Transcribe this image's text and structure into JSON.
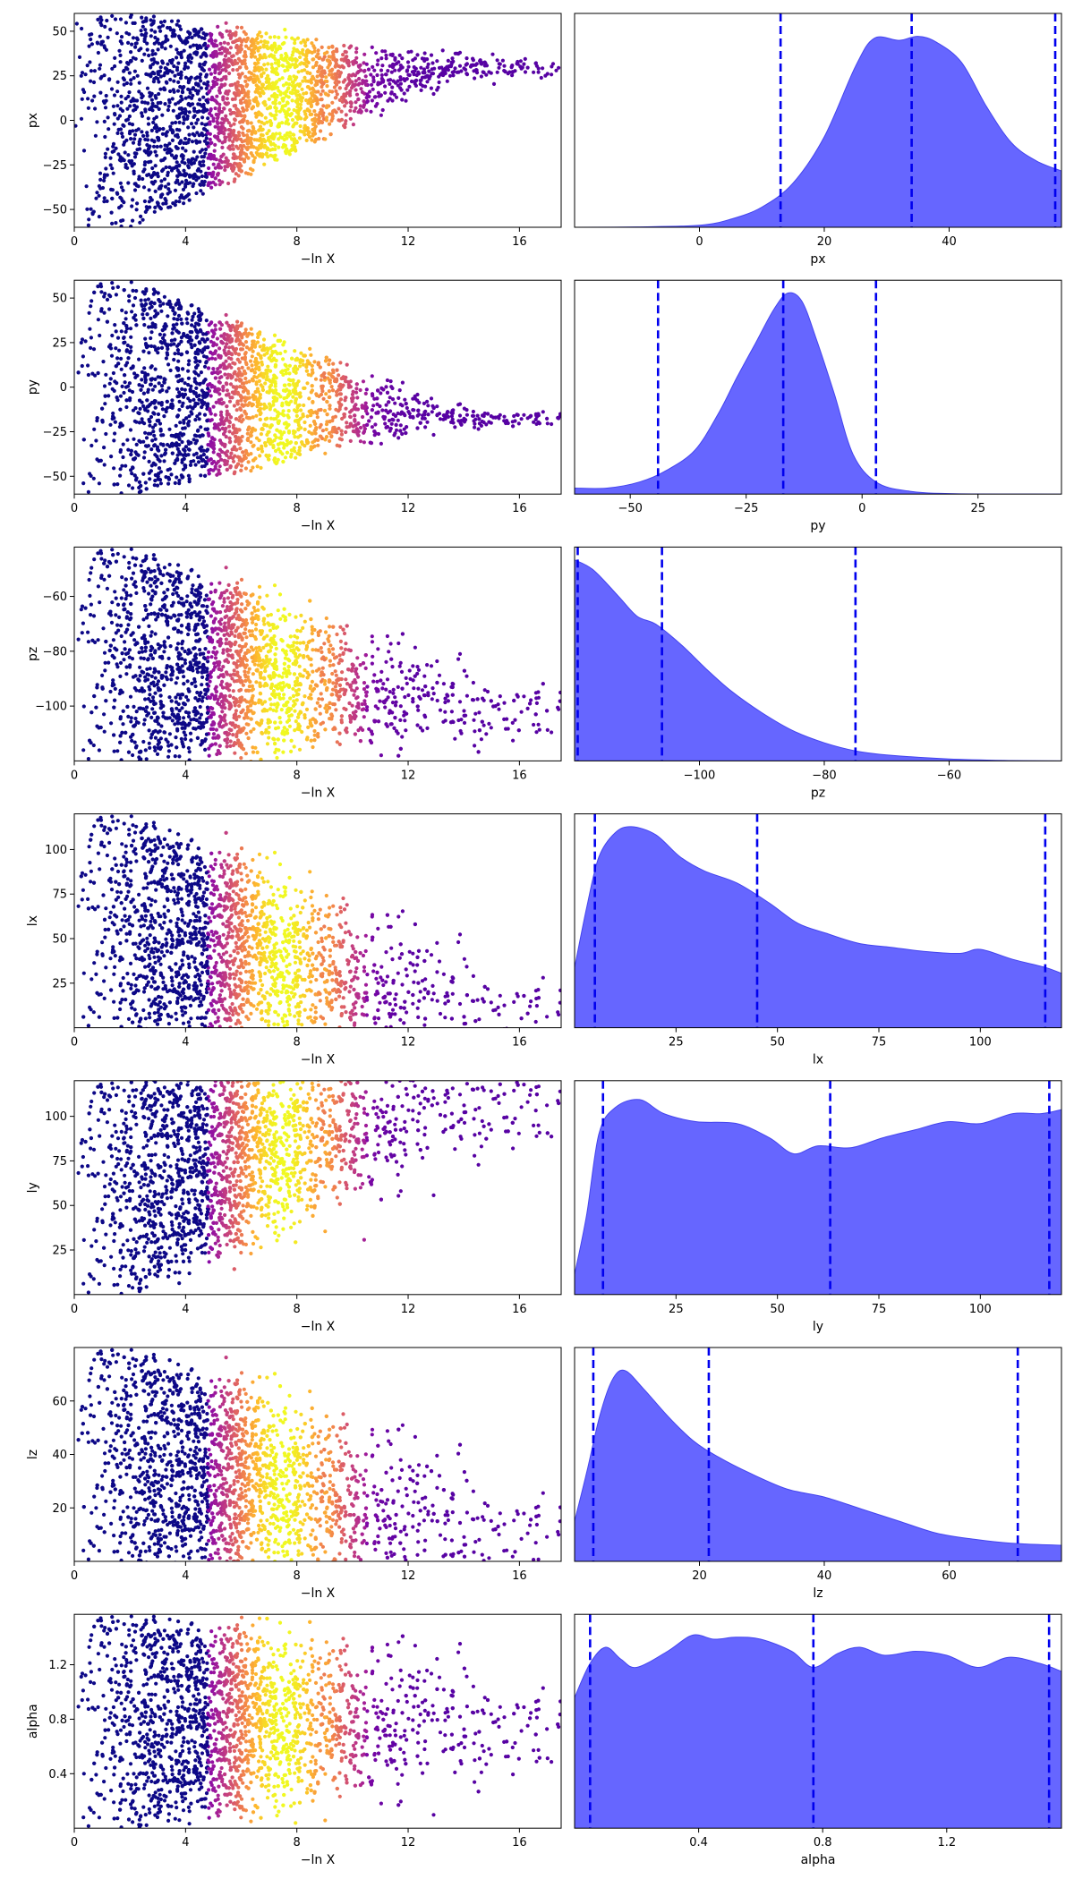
{
  "colors": {
    "scatter_colormap": "plasma",
    "kde_fill": "#6666ff",
    "kde_line": "#4444ee",
    "quantile_line": "#0000ee"
  },
  "chart_data": [
    {
      "type": "scatter",
      "param": "px",
      "xlabel": "−ln X",
      "ylabel": "px",
      "xlim": [
        0,
        17.5
      ],
      "ylim": [
        -60,
        60
      ],
      "xticks": [
        "0",
        "4",
        "8",
        "12",
        "16"
      ],
      "yticks": [
        "−50",
        "−25",
        "0",
        "25",
        "50"
      ],
      "shape": {
        "center": [
          30,
          -5
        ],
        "converge": 30,
        "spread": 8
      },
      "colorbar_peak_x": 7.5
    },
    {
      "type": "area",
      "param": "px",
      "xlabel": "px",
      "xlim": [
        -20,
        58
      ],
      "ylim": [
        0,
        1
      ],
      "xticks": [
        "0",
        "20",
        "40"
      ],
      "quantiles": [
        13,
        34,
        57
      ],
      "density": [
        [
          -20,
          0
        ],
        [
          -10,
          0.002
        ],
        [
          0,
          0.01
        ],
        [
          5,
          0.04
        ],
        [
          10,
          0.1
        ],
        [
          15,
          0.22
        ],
        [
          20,
          0.45
        ],
        [
          25,
          0.8
        ],
        [
          28,
          0.94
        ],
        [
          32,
          0.93
        ],
        [
          35,
          0.95
        ],
        [
          38,
          0.92
        ],
        [
          42,
          0.82
        ],
        [
          46,
          0.6
        ],
        [
          50,
          0.42
        ],
        [
          54,
          0.33
        ],
        [
          58,
          0.28
        ]
      ]
    },
    {
      "type": "scatter",
      "param": "py",
      "xlabel": "−ln X",
      "ylabel": "py",
      "xlim": [
        0,
        17.5
      ],
      "ylim": [
        -60,
        60
      ],
      "xticks": [
        "0",
        "4",
        "8",
        "12",
        "16"
      ],
      "yticks": [
        "−50",
        "−25",
        "0",
        "25",
        "50"
      ],
      "shape": {
        "center": [
          -5,
          -5
        ],
        "converge": -17,
        "spread": 7
      },
      "colorbar_peak_x": 7.5
    },
    {
      "type": "area",
      "param": "py",
      "xlabel": "py",
      "xlim": [
        -62,
        43
      ],
      "ylim": [
        0,
        1
      ],
      "xticks": [
        "−50",
        "−25",
        "0",
        "25"
      ],
      "quantiles": [
        -44,
        -17,
        3
      ],
      "density": [
        [
          -62,
          0.03
        ],
        [
          -55,
          0.03
        ],
        [
          -48,
          0.06
        ],
        [
          -42,
          0.12
        ],
        [
          -36,
          0.22
        ],
        [
          -31,
          0.4
        ],
        [
          -27,
          0.58
        ],
        [
          -23,
          0.75
        ],
        [
          -19,
          0.92
        ],
        [
          -16,
          1.0
        ],
        [
          -13,
          0.96
        ],
        [
          -10,
          0.78
        ],
        [
          -6,
          0.5
        ],
        [
          -2,
          0.2
        ],
        [
          3,
          0.06
        ],
        [
          10,
          0.015
        ],
        [
          20,
          0.002
        ],
        [
          43,
          0
        ]
      ]
    },
    {
      "type": "scatter",
      "param": "pz",
      "xlabel": "−ln X",
      "ylabel": "pz",
      "xlim": [
        0,
        17.5
      ],
      "ylim": [
        -120,
        -42
      ],
      "xticks": [
        "0",
        "4",
        "8",
        "12",
        "16"
      ],
      "yticks": [
        "−100",
        "−80",
        "−60"
      ],
      "shape": {
        "center": [
          -85,
          -15
        ],
        "converge": -100,
        "spread": 18
      },
      "colorbar_peak_x": 7.5
    },
    {
      "type": "area",
      "param": "pz",
      "xlabel": "pz",
      "xlim": [
        -120,
        -42
      ],
      "ylim": [
        0,
        1
      ],
      "xticks": [
        "−100",
        "−80",
        "−60"
      ],
      "quantiles": [
        -119.5,
        -106,
        -75
      ],
      "density": [
        [
          -120,
          1.0
        ],
        [
          -117,
          0.95
        ],
        [
          -113,
          0.82
        ],
        [
          -110,
          0.72
        ],
        [
          -107,
          0.68
        ],
        [
          -103,
          0.58
        ],
        [
          -99,
          0.46
        ],
        [
          -95,
          0.35
        ],
        [
          -90,
          0.24
        ],
        [
          -85,
          0.15
        ],
        [
          -80,
          0.09
        ],
        [
          -75,
          0.05
        ],
        [
          -70,
          0.03
        ],
        [
          -60,
          0.01
        ],
        [
          -50,
          0.002
        ],
        [
          -42,
          0
        ]
      ]
    },
    {
      "type": "scatter",
      "param": "lx",
      "xlabel": "−ln X",
      "ylabel": "lx",
      "xlim": [
        0,
        17.5
      ],
      "ylim": [
        0,
        120
      ],
      "xticks": [
        "0",
        "4",
        "8",
        "12",
        "16"
      ],
      "yticks": [
        "25",
        "50",
        "75",
        "100"
      ],
      "shape": {
        "center": [
          60,
          0
        ],
        "converge": 10,
        "spread": 40
      },
      "colorbar_peak_x": 7.5
    },
    {
      "type": "area",
      "param": "lx",
      "xlabel": "lx",
      "xlim": [
        0,
        120
      ],
      "ylim": [
        0,
        1
      ],
      "xticks": [
        "25",
        "50",
        "75",
        "100"
      ],
      "quantiles": [
        5,
        45,
        116
      ],
      "density": [
        [
          0,
          0.3
        ],
        [
          3,
          0.6
        ],
        [
          6,
          0.85
        ],
        [
          10,
          0.97
        ],
        [
          14,
          1.0
        ],
        [
          20,
          0.96
        ],
        [
          26,
          0.85
        ],
        [
          32,
          0.78
        ],
        [
          40,
          0.72
        ],
        [
          48,
          0.62
        ],
        [
          55,
          0.52
        ],
        [
          62,
          0.47
        ],
        [
          70,
          0.42
        ],
        [
          78,
          0.4
        ],
        [
          86,
          0.38
        ],
        [
          95,
          0.37
        ],
        [
          100,
          0.39
        ],
        [
          108,
          0.34
        ],
        [
          116,
          0.3
        ],
        [
          120,
          0.27
        ]
      ]
    },
    {
      "type": "scatter",
      "param": "ly",
      "xlabel": "−ln X",
      "ylabel": "ly",
      "xlim": [
        0,
        17.5
      ],
      "ylim": [
        0,
        120
      ],
      "xticks": [
        "0",
        "4",
        "8",
        "12",
        "16"
      ],
      "yticks": [
        "25",
        "50",
        "75",
        "100"
      ],
      "shape": {
        "center": [
          60,
          0
        ],
        "converge": 110,
        "spread": 40
      },
      "colorbar_peak_x": 7.5
    },
    {
      "type": "area",
      "param": "ly",
      "xlabel": "ly",
      "xlim": [
        0,
        120
      ],
      "ylim": [
        0,
        1
      ],
      "xticks": [
        "25",
        "50",
        "75",
        "100"
      ],
      "quantiles": [
        7,
        63,
        117
      ],
      "density": [
        [
          0,
          0.1
        ],
        [
          3,
          0.4
        ],
        [
          6,
          0.8
        ],
        [
          10,
          0.93
        ],
        [
          16,
          0.97
        ],
        [
          22,
          0.9
        ],
        [
          30,
          0.86
        ],
        [
          40,
          0.85
        ],
        [
          48,
          0.78
        ],
        [
          54,
          0.7
        ],
        [
          60,
          0.74
        ],
        [
          68,
          0.73
        ],
        [
          76,
          0.78
        ],
        [
          84,
          0.82
        ],
        [
          92,
          0.86
        ],
        [
          100,
          0.85
        ],
        [
          108,
          0.9
        ],
        [
          115,
          0.9
        ],
        [
          120,
          0.92
        ]
      ]
    },
    {
      "type": "scatter",
      "param": "lz",
      "xlabel": "−ln X",
      "ylabel": "lz",
      "xlim": [
        0,
        17.5
      ],
      "ylim": [
        0,
        80
      ],
      "xticks": [
        "0",
        "4",
        "8",
        "12",
        "16"
      ],
      "yticks": [
        "20",
        "40",
        "60"
      ],
      "shape": {
        "center": [
          40,
          0
        ],
        "converge": 12,
        "spread": 30
      },
      "colorbar_peak_x": 7.5
    },
    {
      "type": "area",
      "param": "lz",
      "xlabel": "lz",
      "xlim": [
        0,
        78
      ],
      "ylim": [
        0,
        1
      ],
      "xticks": [
        "20",
        "40",
        "60"
      ],
      "quantiles": [
        3,
        21.5,
        71
      ],
      "density": [
        [
          0,
          0.2
        ],
        [
          2,
          0.45
        ],
        [
          4,
          0.72
        ],
        [
          6,
          0.9
        ],
        [
          8,
          0.95
        ],
        [
          11,
          0.86
        ],
        [
          15,
          0.72
        ],
        [
          19,
          0.6
        ],
        [
          23,
          0.52
        ],
        [
          28,
          0.44
        ],
        [
          34,
          0.36
        ],
        [
          40,
          0.32
        ],
        [
          46,
          0.26
        ],
        [
          52,
          0.2
        ],
        [
          58,
          0.14
        ],
        [
          64,
          0.11
        ],
        [
          70,
          0.09
        ],
        [
          78,
          0.08
        ]
      ]
    },
    {
      "type": "scatter",
      "param": "alpha",
      "xlabel": "−ln X",
      "ylabel": "alpha",
      "xlim": [
        0,
        17.5
      ],
      "ylim": [
        0,
        1.57
      ],
      "xticks": [
        "0",
        "4",
        "8",
        "12",
        "16"
      ],
      "yticks": [
        "0.4",
        "0.8",
        "1.2"
      ],
      "shape": {
        "center": [
          0.78,
          0
        ],
        "converge": 0.78,
        "spread": 0.55
      },
      "colorbar_peak_x": 7.5
    },
    {
      "type": "area",
      "param": "alpha",
      "xlabel": "alpha",
      "xlim": [
        0,
        1.57
      ],
      "ylim": [
        0,
        1
      ],
      "xticks": [
        "0.4",
        "0.8",
        "1.2"
      ],
      "quantiles": [
        0.05,
        0.77,
        1.53
      ],
      "density": [
        [
          0,
          0.65
        ],
        [
          0.05,
          0.82
        ],
        [
          0.1,
          0.9
        ],
        [
          0.15,
          0.84
        ],
        [
          0.2,
          0.8
        ],
        [
          0.3,
          0.88
        ],
        [
          0.38,
          0.96
        ],
        [
          0.45,
          0.94
        ],
        [
          0.52,
          0.95
        ],
        [
          0.6,
          0.94
        ],
        [
          0.7,
          0.88
        ],
        [
          0.77,
          0.8
        ],
        [
          0.85,
          0.87
        ],
        [
          0.92,
          0.9
        ],
        [
          1.0,
          0.86
        ],
        [
          1.1,
          0.88
        ],
        [
          1.2,
          0.86
        ],
        [
          1.3,
          0.8
        ],
        [
          1.4,
          0.85
        ],
        [
          1.5,
          0.82
        ],
        [
          1.57,
          0.78
        ]
      ]
    }
  ]
}
